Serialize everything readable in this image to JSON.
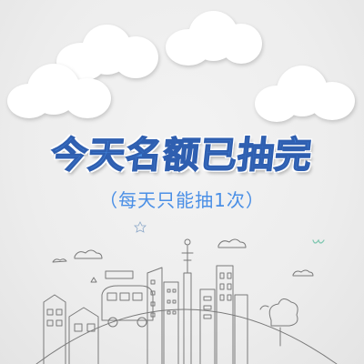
{
  "title": "今天名额已抽完",
  "subtitle": "（每天只能抽1次）",
  "colors": {
    "accent": "#4a8fe6",
    "accent_stroke": "#2f5fb0",
    "background": "#efefef"
  },
  "decorations": [
    "cloud-top-left",
    "cloud-top-right",
    "cloud-left",
    "cloud-right",
    "city-sketch"
  ]
}
